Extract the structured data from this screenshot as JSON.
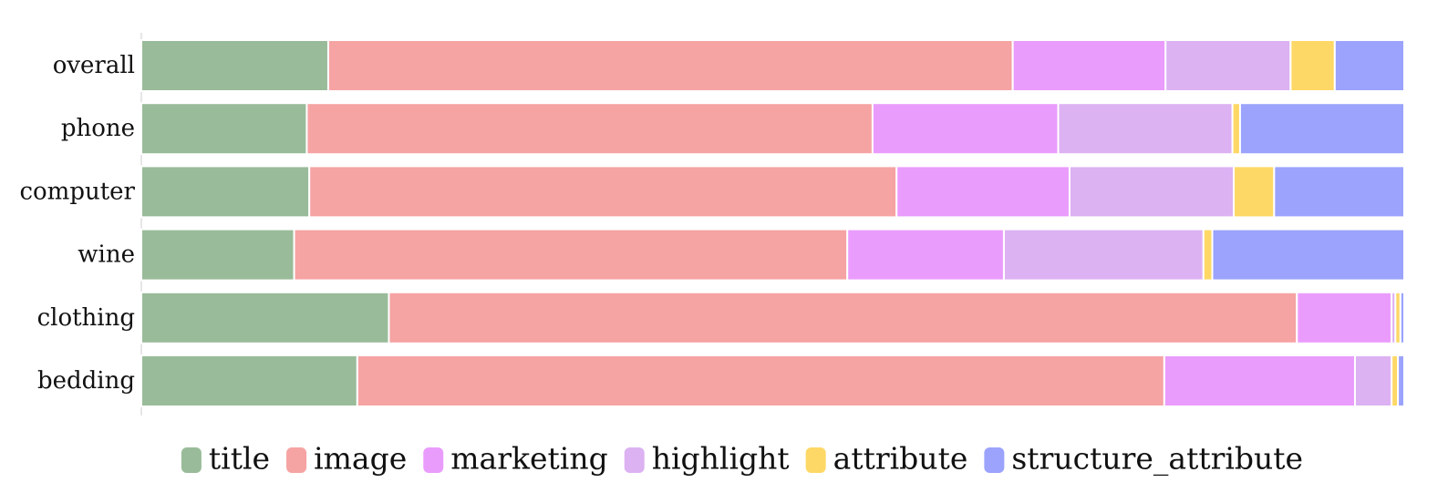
{
  "chart_data": {
    "type": "bar",
    "orientation": "horizontal",
    "stacked": true,
    "normalized": true,
    "categories": [
      "overall",
      "phone",
      "computer",
      "wine",
      "clothing",
      "bedding"
    ],
    "series": [
      {
        "name": "title",
        "color": "#99bb99",
        "values": [
          0.148,
          0.131,
          0.133,
          0.121,
          0.196,
          0.171
        ]
      },
      {
        "name": "image",
        "color": "#f6a3a3",
        "values": [
          0.542,
          0.448,
          0.465,
          0.438,
          0.719,
          0.639
        ]
      },
      {
        "name": "marketing",
        "color": "#ea9cfc",
        "values": [
          0.121,
          0.147,
          0.137,
          0.124,
          0.075,
          0.151
        ]
      },
      {
        "name": "highlight",
        "color": "#dcb2f2",
        "values": [
          0.099,
          0.138,
          0.13,
          0.158,
          0.003,
          0.029
        ]
      },
      {
        "name": "attribute",
        "color": "#fed866",
        "values": [
          0.035,
          0.006,
          0.032,
          0.007,
          0.004,
          0.005
        ]
      },
      {
        "name": "structure_attribute",
        "color": "#9ba3fc",
        "values": [
          0.055,
          0.13,
          0.103,
          0.152,
          0.003,
          0.005
        ]
      }
    ],
    "xlim": [
      0,
      1
    ],
    "grid": false,
    "legend_position": "bottom"
  }
}
